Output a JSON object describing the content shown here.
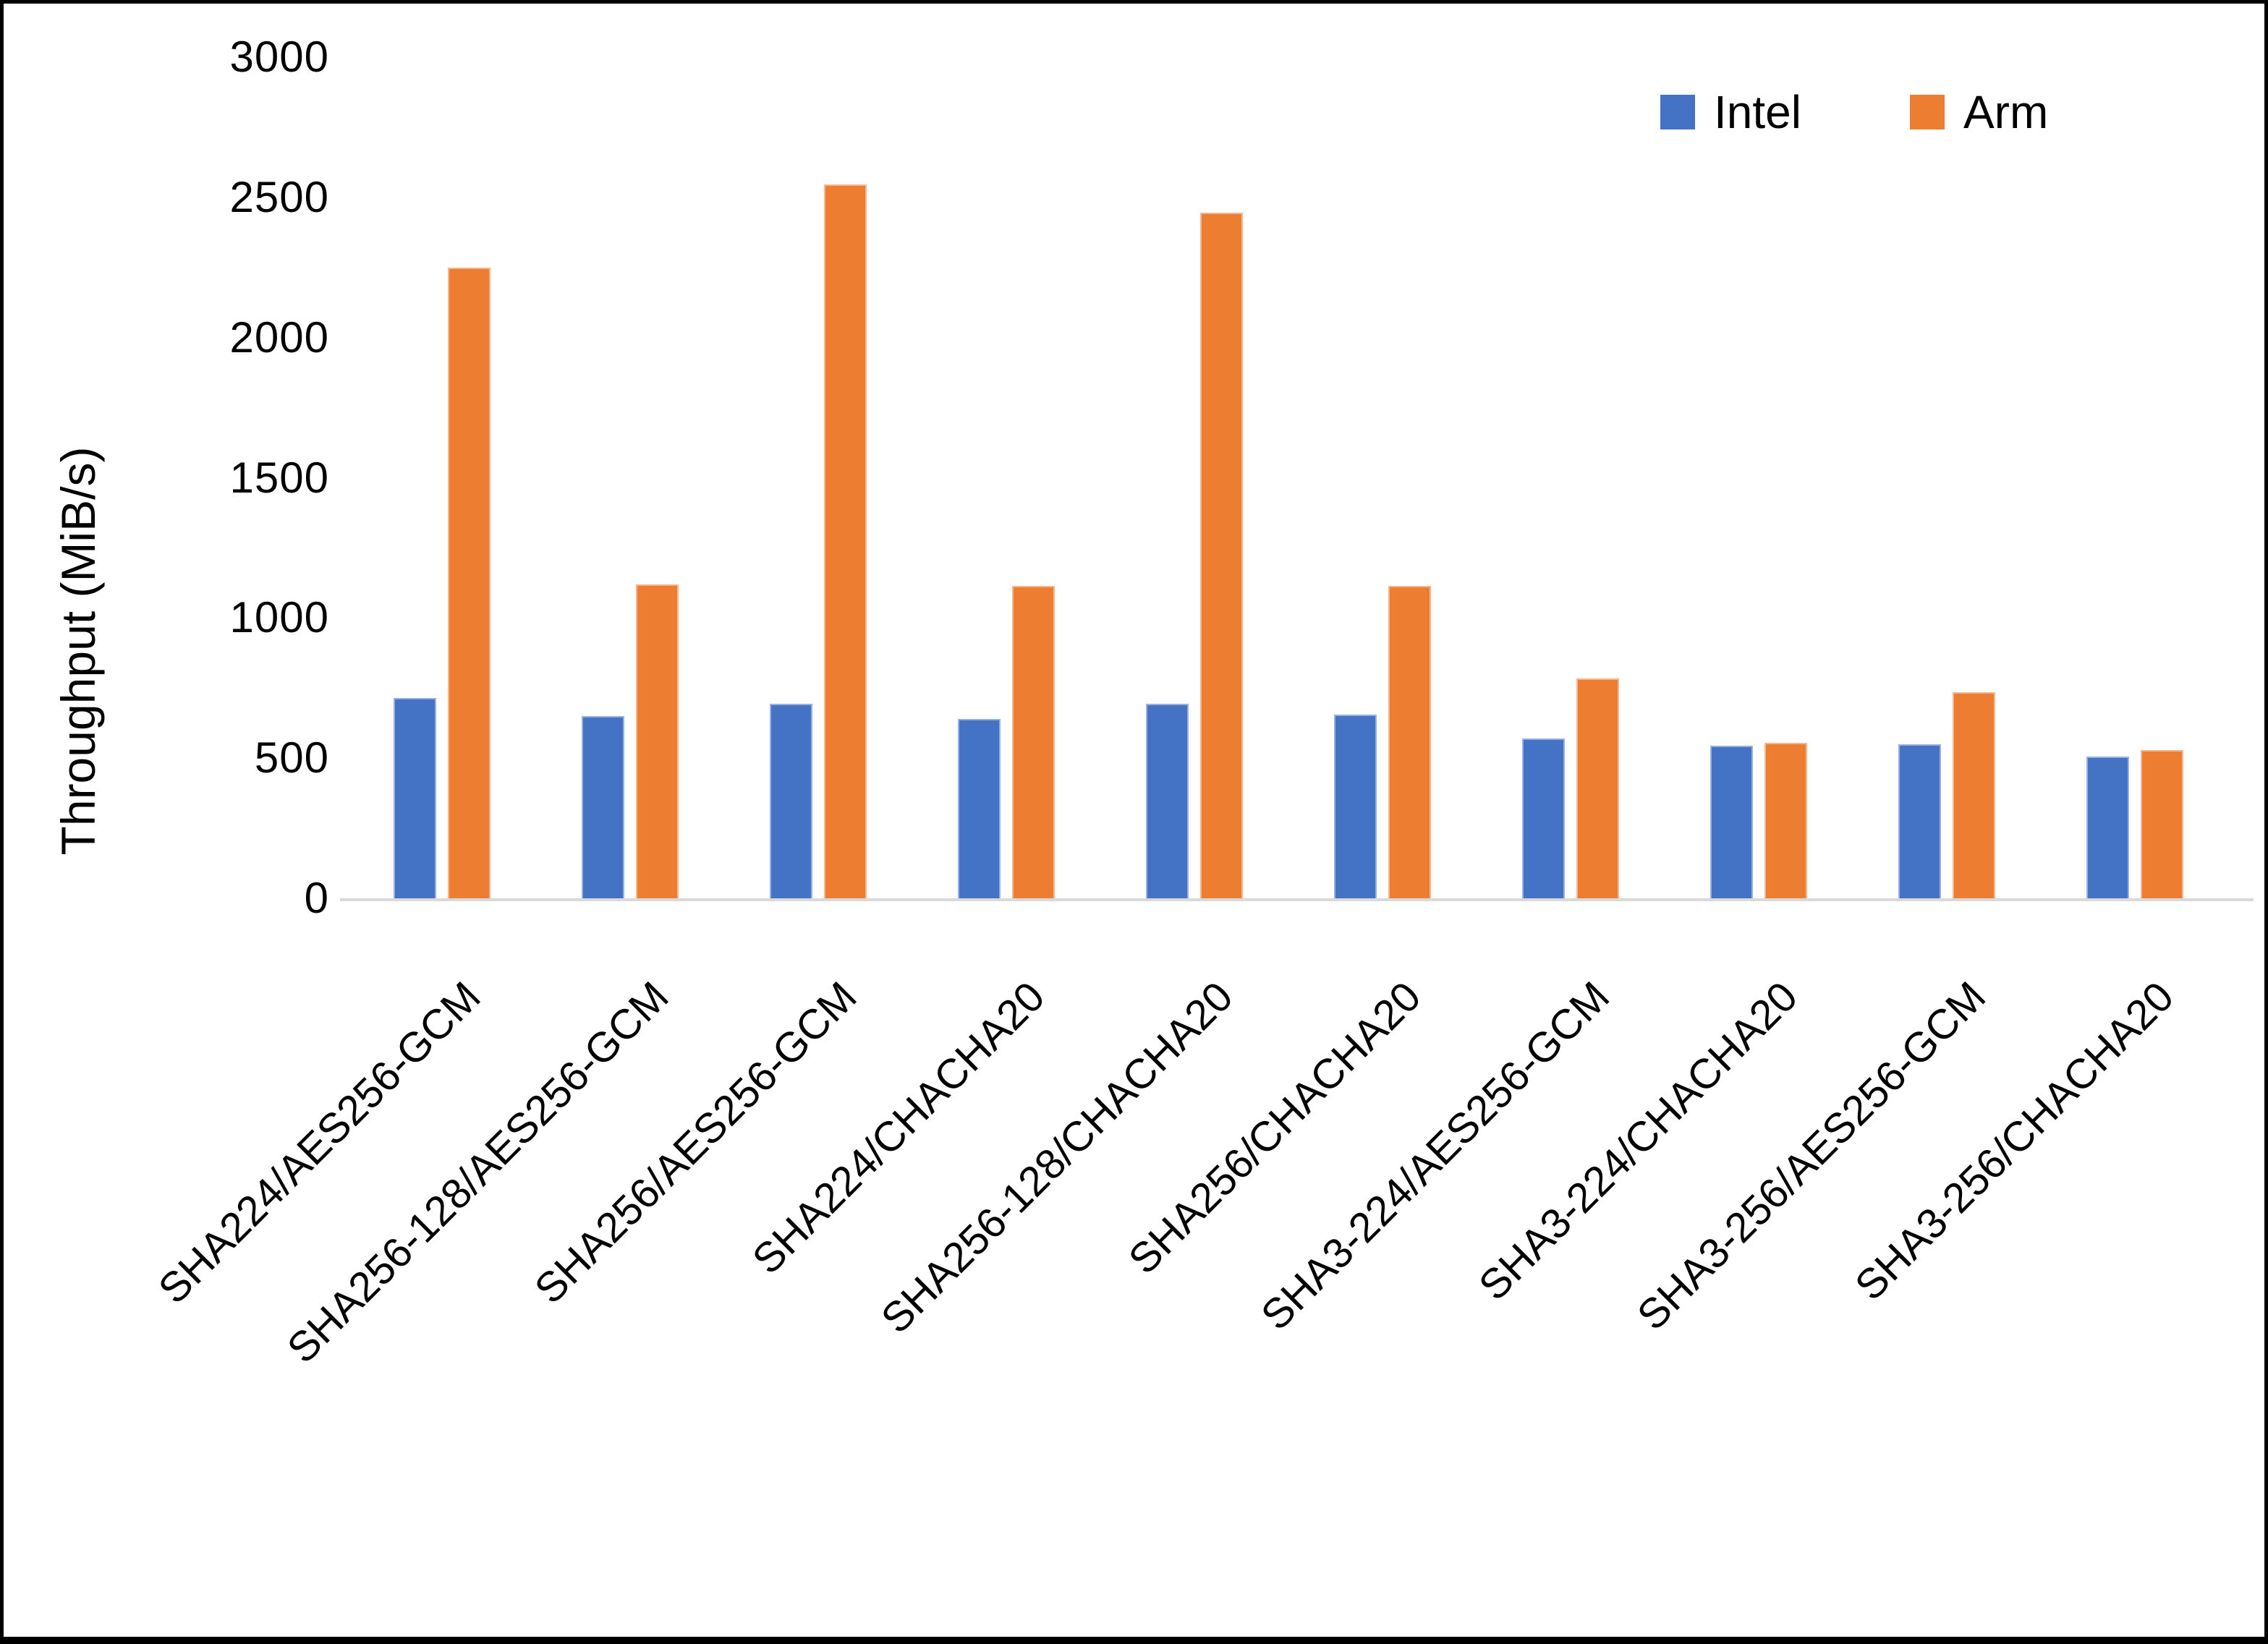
{
  "figure": {
    "background": "#FFFFFF",
    "border_color": "#000000",
    "axis_line_color": "#D9D9D9"
  },
  "chart_data": {
    "type": "bar",
    "title": "",
    "xlabel": "",
    "ylabel": "Throughput (MiB/s)",
    "ylim": [
      0,
      3000
    ],
    "ytick_interval": 500,
    "ytick_labels": [
      "0",
      "500",
      "1000",
      "1500",
      "2000",
      "2500",
      "3000"
    ],
    "grid": false,
    "legend_position": "top-right",
    "categories": [
      "SHA224/AES256-GCM",
      "SHA256-128/AES256-GCM",
      "SHA256/AES256-GCM",
      "SHA224/CHACHA20",
      "SHA256-128/CHACHA20",
      "SHA256/CHACHA20",
      "SHA3-224/AES256-GCM",
      "SHA3-224/CHACHA20",
      "SHA3-256/AES256-GCM",
      "SHA3-256/CHACHA20"
    ],
    "series": [
      {
        "name": "Intel",
        "color": "#4472C4",
        "values": [
          715,
          650,
          695,
          640,
          695,
          655,
          570,
          545,
          550,
          505
        ]
      },
      {
        "name": "Arm",
        "color": "#ED7D31",
        "values": [
          2250,
          1120,
          2545,
          1115,
          2445,
          1115,
          785,
          555,
          735,
          530
        ]
      }
    ]
  }
}
